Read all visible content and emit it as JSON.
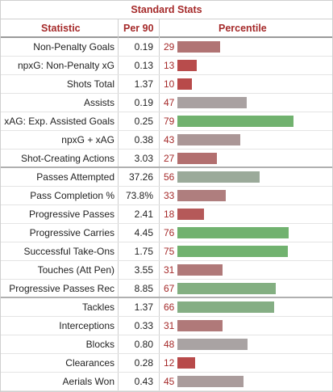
{
  "chart_data": {
    "type": "bar",
    "title": "Standard Stats",
    "columns": [
      "Statistic",
      "Per 90",
      "Percentile"
    ],
    "xlim": [
      0,
      100
    ],
    "colors": {
      "high": "#71b26f",
      "mid": "#a8a8a8",
      "low": "#b84a4a"
    },
    "rows": [
      {
        "label": "Non-Penalty Goals",
        "value": "0.19",
        "percentile": 29
      },
      {
        "label": "npxG: Non-Penalty xG",
        "value": "0.13",
        "percentile": 13
      },
      {
        "label": "Shots Total",
        "value": "1.37",
        "percentile": 10
      },
      {
        "label": "Assists",
        "value": "0.19",
        "percentile": 47
      },
      {
        "label": "xAG: Exp. Assisted Goals",
        "value": "0.25",
        "percentile": 79
      },
      {
        "label": "npxG + xAG",
        "value": "0.38",
        "percentile": 43
      },
      {
        "label": "Shot-Creating Actions",
        "value": "3.03",
        "percentile": 27,
        "group_end": true
      },
      {
        "label": "Passes Attempted",
        "value": "37.26",
        "percentile": 56
      },
      {
        "label": "Pass Completion %",
        "value": "73.8%",
        "percentile": 33
      },
      {
        "label": "Progressive Passes",
        "value": "2.41",
        "percentile": 18
      },
      {
        "label": "Progressive Carries",
        "value": "4.45",
        "percentile": 76
      },
      {
        "label": "Successful Take-Ons",
        "value": "1.75",
        "percentile": 75
      },
      {
        "label": "Touches (Att Pen)",
        "value": "3.55",
        "percentile": 31
      },
      {
        "label": "Progressive Passes Rec",
        "value": "8.85",
        "percentile": 67,
        "group_end": true
      },
      {
        "label": "Tackles",
        "value": "1.37",
        "percentile": 66
      },
      {
        "label": "Interceptions",
        "value": "0.33",
        "percentile": 31
      },
      {
        "label": "Blocks",
        "value": "0.80",
        "percentile": 48
      },
      {
        "label": "Clearances",
        "value": "0.28",
        "percentile": 12
      },
      {
        "label": "Aerials Won",
        "value": "0.43",
        "percentile": 45
      }
    ]
  }
}
